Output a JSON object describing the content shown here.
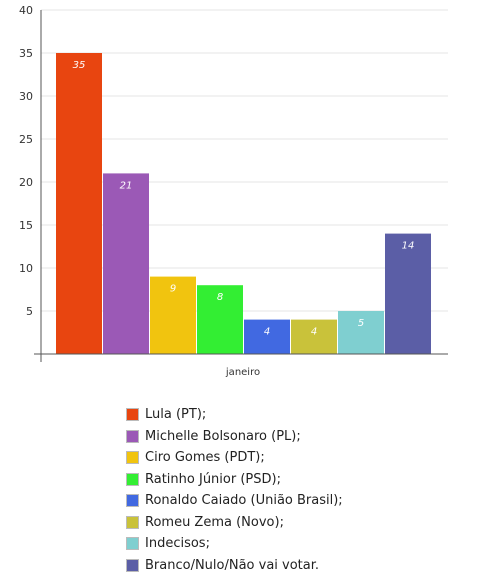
{
  "chart_data": {
    "type": "bar",
    "title": "",
    "xlabel": "",
    "ylabel": "",
    "categories": [
      "janeiro"
    ],
    "ylim": [
      0,
      40
    ],
    "yticks": [
      5,
      10,
      15,
      20,
      25,
      30,
      35,
      40
    ],
    "grid": true,
    "legend_position": "bottom",
    "series": [
      {
        "name": "Lula (PT);",
        "values": [
          35
        ],
        "color": "#e84510"
      },
      {
        "name": "Michelle Bolsonaro (PL);",
        "values": [
          21
        ],
        "color": "#9b59b6"
      },
      {
        "name": "Ciro Gomes (PDT);",
        "values": [
          9
        ],
        "color": "#f1c40f"
      },
      {
        "name": "Ratinho Júnior (PSD);",
        "values": [
          8
        ],
        "color": "#33ee33"
      },
      {
        "name": "Ronaldo Caiado (União Brasil);",
        "values": [
          4
        ],
        "color": "#4169e1"
      },
      {
        "name": "Romeu Zema (Novo);",
        "values": [
          4
        ],
        "color": "#c9c23a"
      },
      {
        "name": "Indecisos;",
        "values": [
          5
        ],
        "color": "#7fcfd0"
      },
      {
        "name": "Branco/Nulo/Não vai votar.",
        "values": [
          14
        ],
        "color": "#5b5ea6"
      }
    ]
  }
}
